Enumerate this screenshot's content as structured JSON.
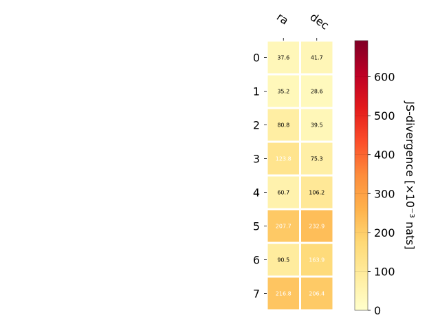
{
  "chart_data": {
    "type": "heatmap",
    "columns": [
      "ra",
      "dec"
    ],
    "rows": [
      "0",
      "1",
      "2",
      "3",
      "4",
      "5",
      "6",
      "7"
    ],
    "values": [
      [
        37.6,
        41.7
      ],
      [
        35.2,
        28.6
      ],
      [
        80.8,
        39.5
      ],
      [
        123.8,
        75.3
      ],
      [
        60.7,
        106.2
      ],
      [
        207.7,
        232.9
      ],
      [
        90.5,
        163.9
      ],
      [
        216.8,
        206.4
      ]
    ],
    "value_labels": [
      [
        "37.6",
        "41.7"
      ],
      [
        "35.2",
        "28.6"
      ],
      [
        "80.8",
        "39.5"
      ],
      [
        "123.8",
        "75.3"
      ],
      [
        "60.7",
        "106.2"
      ],
      [
        "207.7",
        "232.9"
      ],
      [
        "90.5",
        "163.9"
      ],
      [
        "216.8",
        "206.4"
      ]
    ],
    "colorbar": {
      "label": "JS-divergence [×10⁻³ nats]",
      "range": [
        0,
        693
      ],
      "ticks": [
        0,
        100,
        200,
        300,
        400,
        500,
        600
      ],
      "tick_labels": [
        "0",
        "100",
        "200",
        "300",
        "400",
        "500",
        "600"
      ],
      "colormap": "YlOrRd"
    },
    "text_color_threshold": 110,
    "colors": {
      "text_dark": "#000000",
      "text_light": "#ffffff",
      "grid": "#ffffff"
    }
  }
}
